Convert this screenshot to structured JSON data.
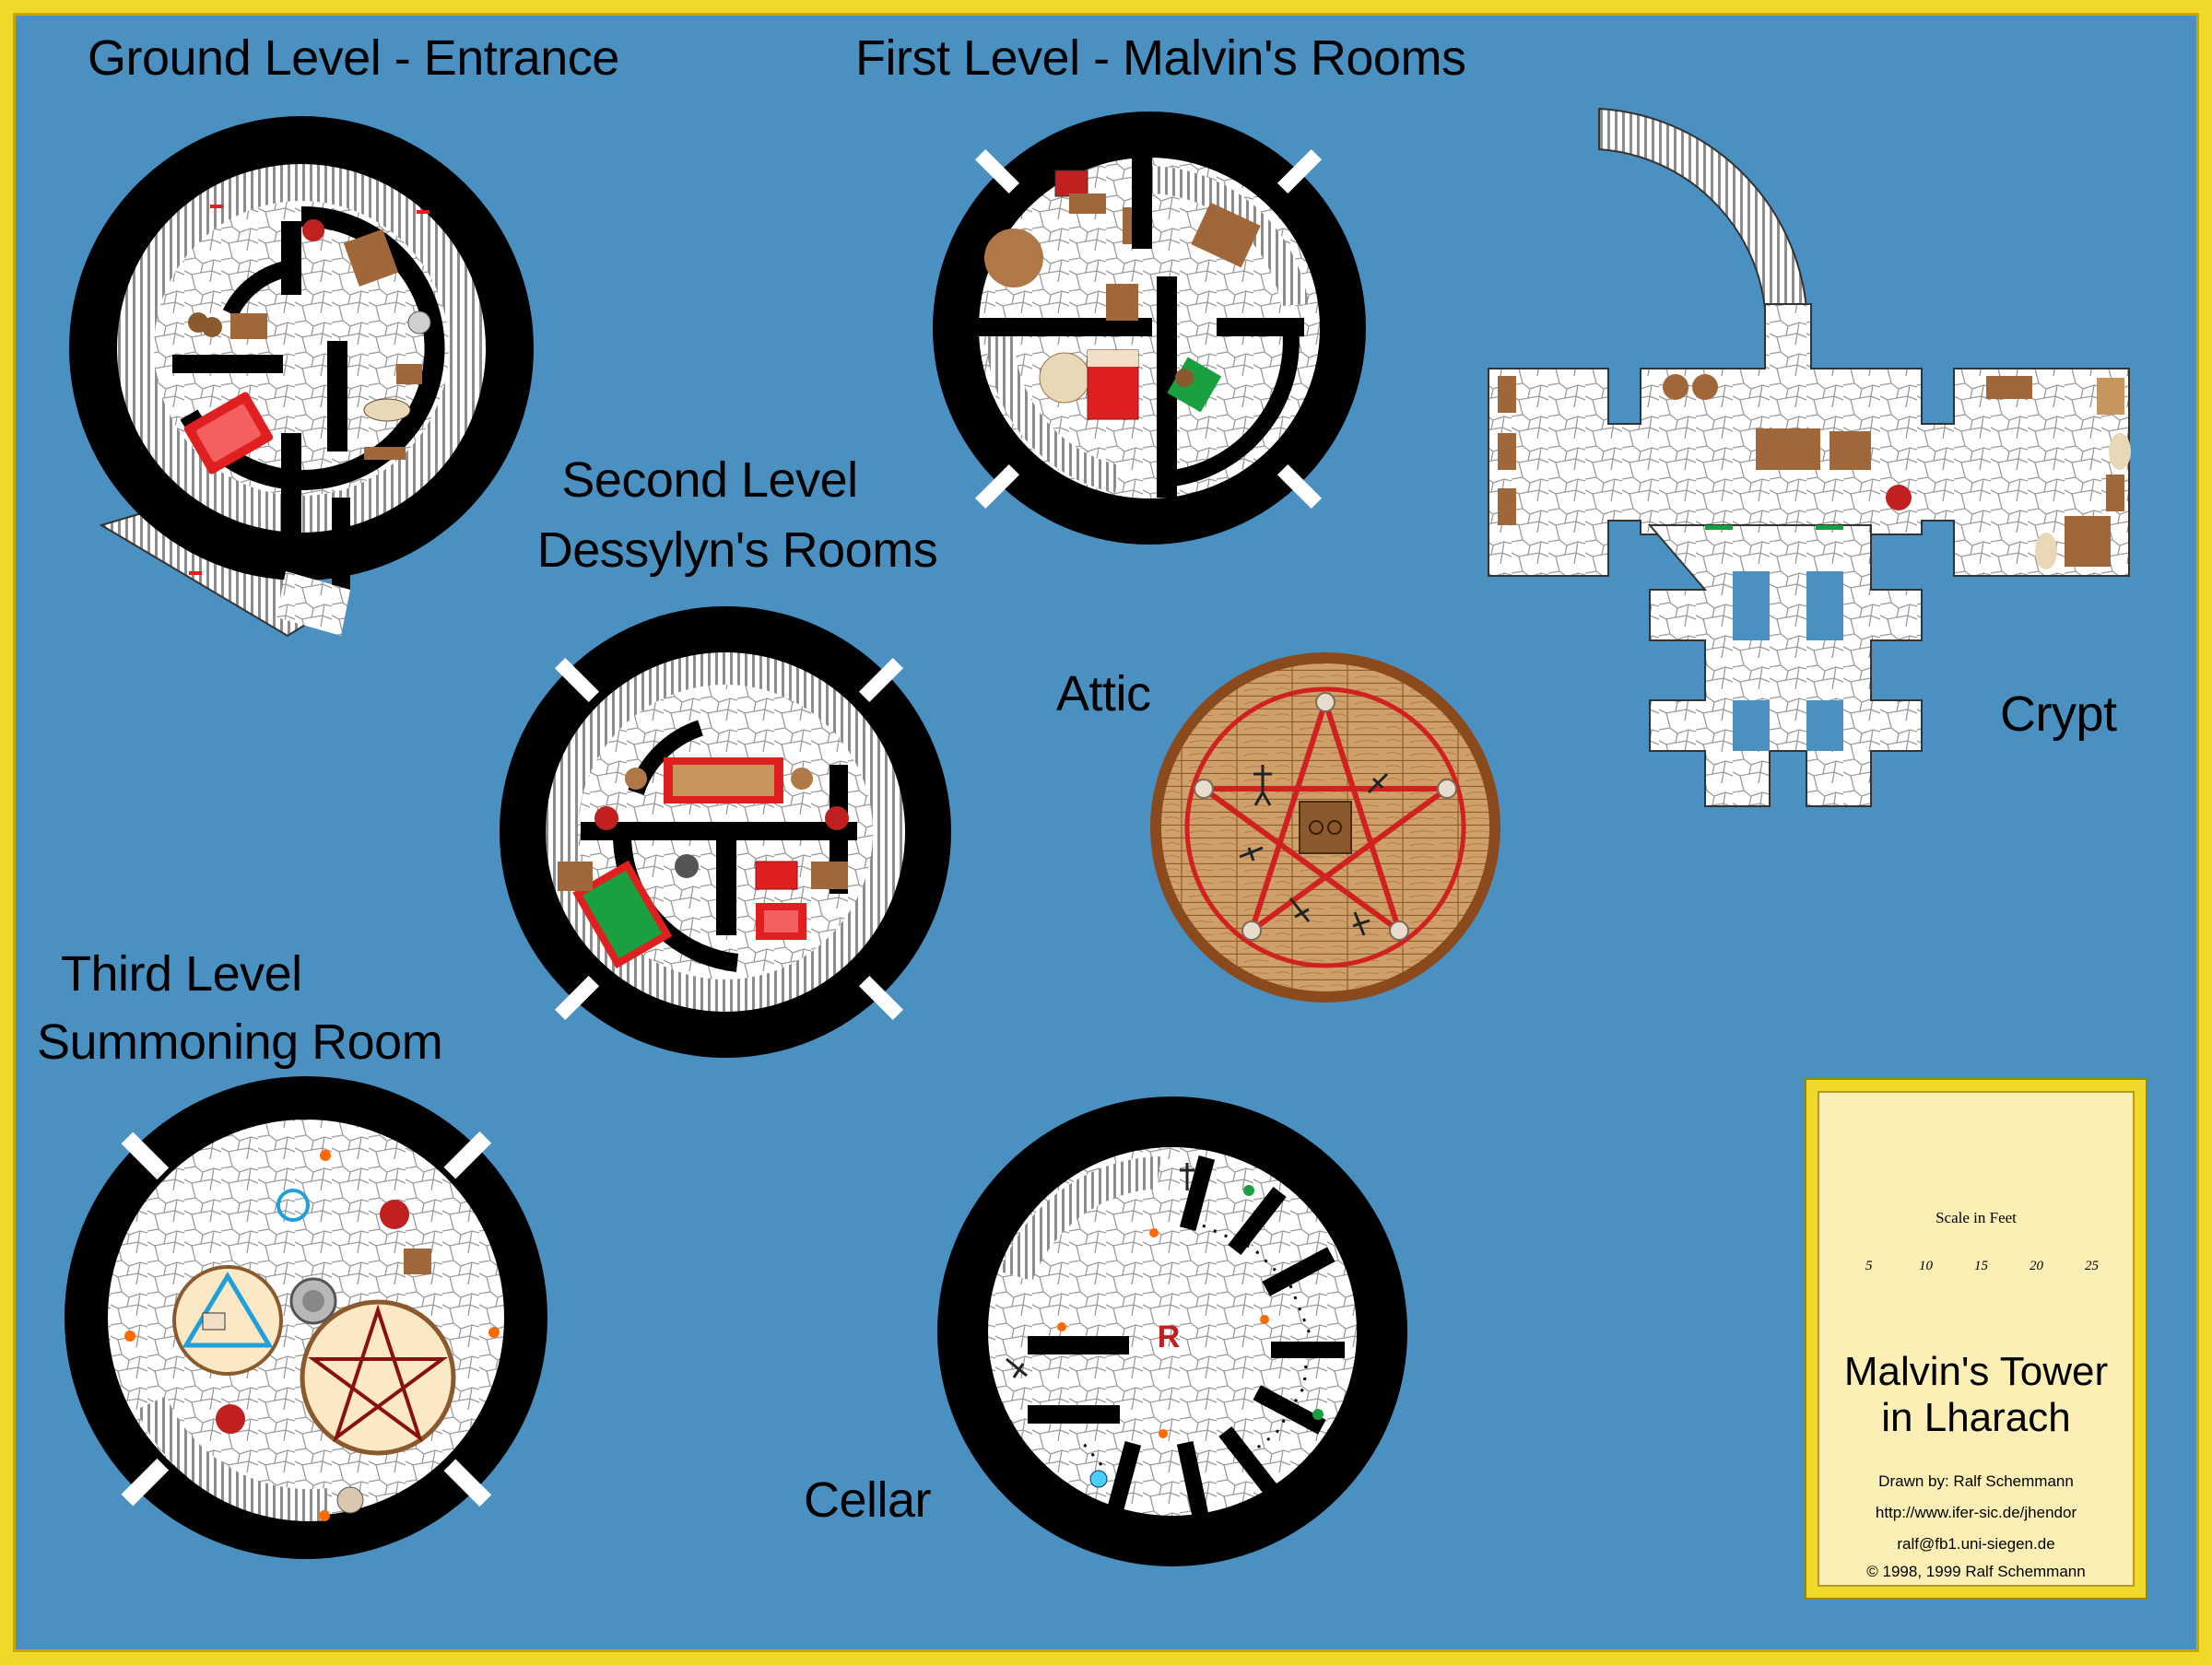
{
  "labels": {
    "ground": "Ground Level - Entrance",
    "first": "First Level - Malvin's Rooms",
    "second_line1": "Second Level",
    "second_line2": "Dessylyn's Rooms",
    "attic": "Attic",
    "crypt": "Crypt",
    "third_line1": "Third Level",
    "third_line2": "Summoning Room",
    "cellar": "Cellar"
  },
  "legend": {
    "scale_title": "Scale in Feet",
    "scale_ticks": [
      "5",
      "10",
      "15",
      "20",
      "25"
    ],
    "title_line1": "Malvin's Tower",
    "title_line2": "in Lharach",
    "drawn_by": "Drawn by: Ralf Schemmann",
    "url": "http://www.ifer-sic.de/jhendor",
    "email": "ralf@fb1.uni-siegen.de",
    "copyright": "© 1998, 1999 Ralf Schemmann"
  },
  "cellar_rune": "R",
  "colors": {
    "water": "#4a90c0",
    "border": "#f1d92a",
    "wall": "#000000",
    "floor": "#ffffff",
    "wood": "#a0683a",
    "red_accent": "#e02020",
    "attic_floor": "#c9925c",
    "attic_rim": "#8a4a1e"
  },
  "icons": [
    "fire-icon",
    "compass-icon",
    "skeleton-icon",
    "pentagram-icon",
    "triangle-icon"
  ]
}
